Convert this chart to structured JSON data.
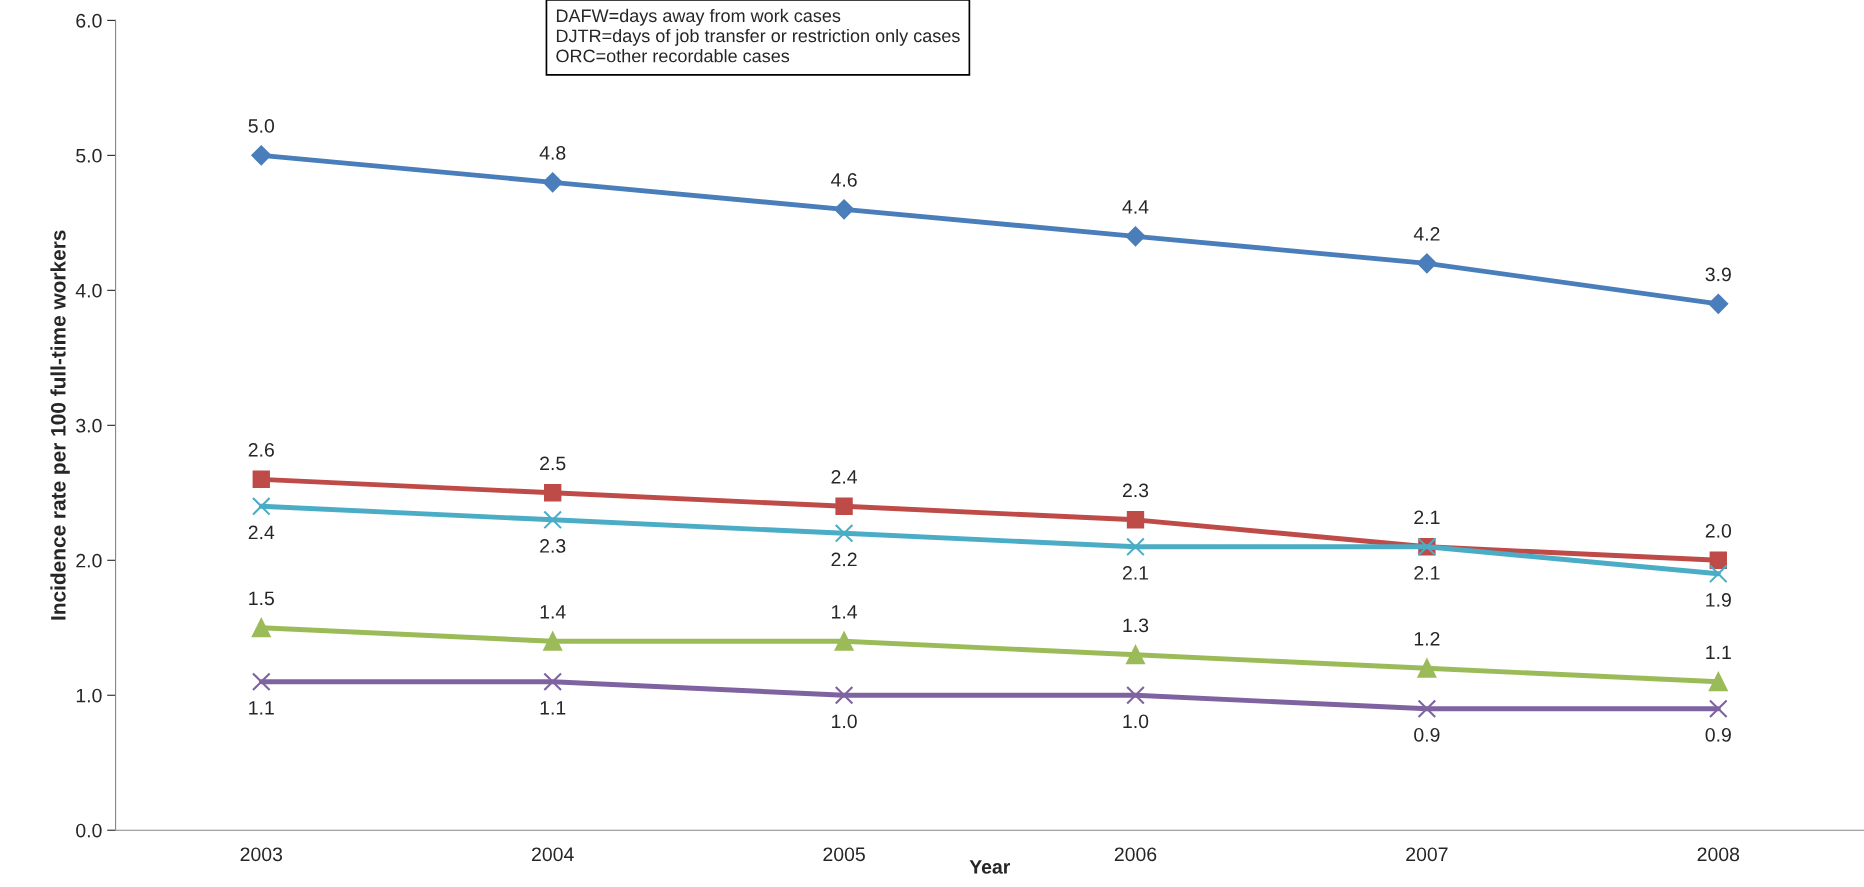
{
  "chart_data": {
    "type": "line",
    "categories": [
      "2003",
      "2004",
      "2005",
      "2006",
      "2007",
      "2008"
    ],
    "xlabel": "Year",
    "ylabel": "Incidence rate per 100 full-time workers",
    "ylim": [
      0,
      6
    ],
    "yticks": [
      {
        "value": 0,
        "label": "0.0"
      },
      {
        "value": 1,
        "label": "1.0"
      },
      {
        "value": 2,
        "label": "2.0"
      },
      {
        "value": 3,
        "label": "3.0"
      },
      {
        "value": 4,
        "label": "4.0"
      },
      {
        "value": 5,
        "label": "5.0"
      },
      {
        "value": 6,
        "label": "6.0"
      }
    ],
    "series": [
      {
        "color": "#4a7ebb",
        "marker": "diamond",
        "values": [
          5.0,
          4.8,
          4.6,
          4.4,
          4.2,
          3.9
        ],
        "value_labels": [
          "5.0",
          "4.8",
          "4.6",
          "4.4",
          "4.2",
          "3.9"
        ]
      },
      {
        "color": "#be4b48",
        "marker": "square",
        "values": [
          2.6,
          2.5,
          2.4,
          2.3,
          2.1,
          2.0
        ],
        "value_labels": [
          "2.6",
          "2.5",
          "2.4",
          "2.3",
          "2.1",
          "2.0"
        ]
      },
      {
        "color": "#4bacc6",
        "marker": "cross",
        "values": [
          2.4,
          2.3,
          2.2,
          2.1,
          2.1,
          1.9
        ],
        "value_labels": [
          "2.4",
          "2.3",
          "2.2",
          "2.1",
          "2.1",
          "1.9"
        ]
      },
      {
        "color": "#9bbb59",
        "marker": "triangle",
        "values": [
          1.5,
          1.4,
          1.4,
          1.3,
          1.2,
          1.1
        ],
        "value_labels": [
          "1.5",
          "1.4",
          "1.4",
          "1.3",
          "1.2",
          "1.1"
        ]
      },
      {
        "color": "#7f63a1",
        "marker": "cross",
        "values": [
          1.1,
          1.1,
          1.0,
          1.0,
          0.9,
          0.9
        ],
        "value_labels": [
          "1.1",
          "1.1",
          "1.0",
          "1.0",
          "0.9",
          "0.9"
        ]
      }
    ],
    "grid": false,
    "legend": false,
    "annotations": [
      "DAFW=days away from work cases",
      "DJTR=days of job transfer or restriction only cases",
      "ORC=other recordable cases"
    ]
  }
}
